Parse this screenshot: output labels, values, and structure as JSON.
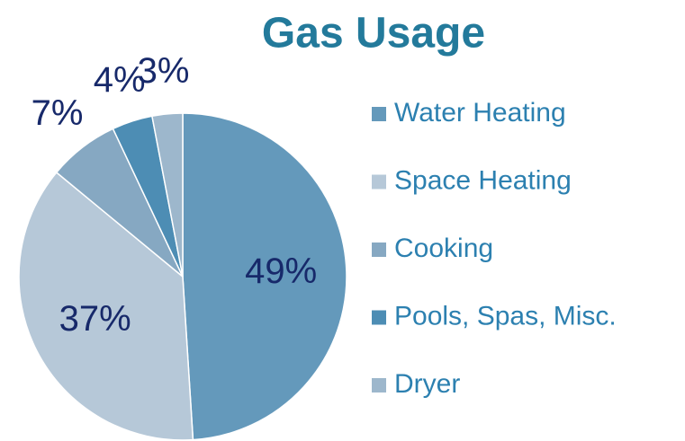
{
  "chart_data": {
    "type": "pie",
    "title": "Gas Usage",
    "categories": [
      "Water Heating",
      "Space Heating",
      "Cooking",
      "Pools, Spas, Misc.",
      "Dryer"
    ],
    "values": [
      49,
      37,
      7,
      4,
      3
    ],
    "value_labels": [
      "49%",
      "37%",
      "7%",
      "4%",
      "3%"
    ],
    "colors": [
      "#6499bb",
      "#b6c8d8",
      "#86a8c2",
      "#4d8db4",
      "#9db7cc"
    ],
    "legend": "right"
  }
}
